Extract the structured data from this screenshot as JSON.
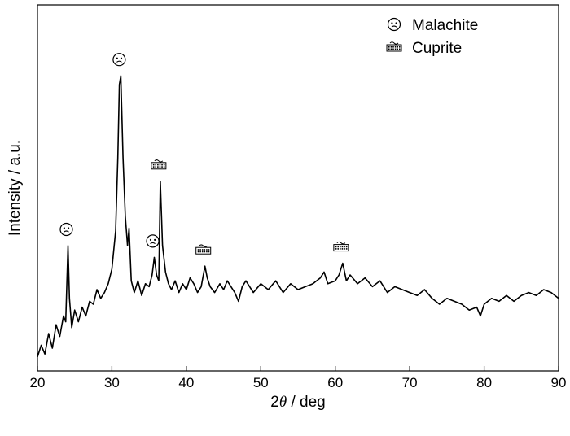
{
  "chart_data": {
    "type": "line",
    "title": "",
    "xlabel": "2θ / deg",
    "xlabel_prefix": "2",
    "xlabel_symbol": "θ",
    "xlabel_suffix": " / deg",
    "ylabel": "Intensity / a.u.",
    "xlim": [
      20,
      90
    ],
    "xticks": [
      20,
      30,
      40,
      50,
      60,
      70,
      80,
      90
    ],
    "yticks_shown": false,
    "ylim": [
      0,
      100
    ],
    "grid": false,
    "legend_position": "top-right",
    "series": [
      {
        "color": "#000000",
        "points": [
          [
            20.0,
            2
          ],
          [
            20.5,
            6
          ],
          [
            21.0,
            3
          ],
          [
            21.5,
            10
          ],
          [
            22.0,
            5
          ],
          [
            22.5,
            13
          ],
          [
            23.0,
            9
          ],
          [
            23.5,
            16
          ],
          [
            23.8,
            14
          ],
          [
            24.1,
            40
          ],
          [
            24.3,
            22
          ],
          [
            24.6,
            12
          ],
          [
            25.0,
            18
          ],
          [
            25.5,
            14
          ],
          [
            26.0,
            19
          ],
          [
            26.5,
            16
          ],
          [
            27.0,
            21
          ],
          [
            27.5,
            20
          ],
          [
            28.0,
            25
          ],
          [
            28.5,
            22
          ],
          [
            29.0,
            24
          ],
          [
            29.5,
            27
          ],
          [
            30.0,
            32
          ],
          [
            30.5,
            45
          ],
          [
            30.8,
            70
          ],
          [
            31.0,
            95
          ],
          [
            31.2,
            98
          ],
          [
            31.5,
            70
          ],
          [
            31.8,
            50
          ],
          [
            32.1,
            40
          ],
          [
            32.3,
            46
          ],
          [
            32.6,
            28
          ],
          [
            33.0,
            24
          ],
          [
            33.5,
            28
          ],
          [
            34.0,
            23
          ],
          [
            34.5,
            27
          ],
          [
            35.0,
            26
          ],
          [
            35.4,
            30
          ],
          [
            35.7,
            36
          ],
          [
            36.0,
            30
          ],
          [
            36.3,
            28
          ],
          [
            36.5,
            62
          ],
          [
            36.8,
            40
          ],
          [
            37.2,
            31
          ],
          [
            37.6,
            27
          ],
          [
            38.0,
            25
          ],
          [
            38.5,
            28
          ],
          [
            39.0,
            24
          ],
          [
            39.5,
            27
          ],
          [
            40.0,
            25
          ],
          [
            40.5,
            29
          ],
          [
            41.0,
            27
          ],
          [
            41.5,
            24
          ],
          [
            42.0,
            26
          ],
          [
            42.5,
            33
          ],
          [
            42.8,
            29
          ],
          [
            43.2,
            26
          ],
          [
            43.8,
            24
          ],
          [
            44.5,
            27
          ],
          [
            45.0,
            25
          ],
          [
            45.5,
            28
          ],
          [
            46.0,
            26
          ],
          [
            46.5,
            24
          ],
          [
            47.0,
            21
          ],
          [
            47.5,
            26
          ],
          [
            48.0,
            28
          ],
          [
            49.0,
            24
          ],
          [
            50.0,
            27
          ],
          [
            51.0,
            25
          ],
          [
            52.0,
            28
          ],
          [
            53.0,
            24
          ],
          [
            54.0,
            27
          ],
          [
            55.0,
            25
          ],
          [
            56.0,
            26
          ],
          [
            57.0,
            27
          ],
          [
            58.0,
            29
          ],
          [
            58.5,
            31
          ],
          [
            59.0,
            27
          ],
          [
            60.0,
            28
          ],
          [
            60.5,
            30
          ],
          [
            61.0,
            34
          ],
          [
            61.5,
            28
          ],
          [
            62.0,
            30
          ],
          [
            63.0,
            27
          ],
          [
            64.0,
            29
          ],
          [
            65.0,
            26
          ],
          [
            66.0,
            28
          ],
          [
            67.0,
            24
          ],
          [
            68.0,
            26
          ],
          [
            69.0,
            25
          ],
          [
            70.0,
            24
          ],
          [
            71.0,
            23
          ],
          [
            72.0,
            25
          ],
          [
            73.0,
            22
          ],
          [
            74.0,
            20
          ],
          [
            75.0,
            22
          ],
          [
            76.0,
            21
          ],
          [
            77.0,
            20
          ],
          [
            78.0,
            18
          ],
          [
            79.0,
            19
          ],
          [
            79.5,
            16
          ],
          [
            80.0,
            20
          ],
          [
            81.0,
            22
          ],
          [
            82.0,
            21
          ],
          [
            83.0,
            23
          ],
          [
            84.0,
            21
          ],
          [
            85.0,
            23
          ],
          [
            86.0,
            24
          ],
          [
            87.0,
            23
          ],
          [
            88.0,
            25
          ],
          [
            89.0,
            24
          ],
          [
            90.0,
            22
          ]
        ]
      }
    ],
    "legend": [
      {
        "label": "Malachite",
        "marker": "malachite-symbol"
      },
      {
        "label": "Cuprite",
        "marker": "cuprite-symbol"
      }
    ],
    "annotations": [
      {
        "x": 24.1,
        "y": 40,
        "marker": "malachite-symbol"
      },
      {
        "x": 31.2,
        "y": 98,
        "marker": "malachite-symbol"
      },
      {
        "x": 35.7,
        "y": 36,
        "marker": "malachite-symbol"
      },
      {
        "x": 36.5,
        "y": 62,
        "marker": "cuprite-symbol"
      },
      {
        "x": 42.5,
        "y": 33,
        "marker": "cuprite-symbol"
      },
      {
        "x": 61.0,
        "y": 34,
        "marker": "cuprite-symbol"
      }
    ]
  }
}
